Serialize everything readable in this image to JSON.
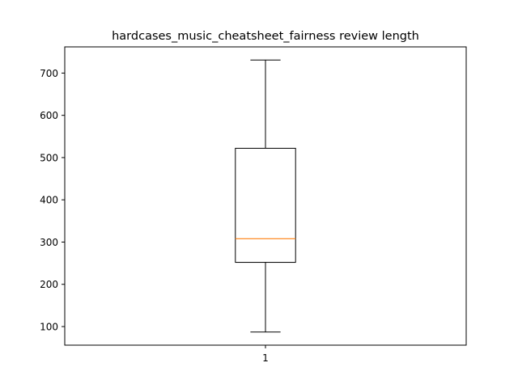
{
  "chart_data": {
    "type": "box",
    "title": "hardcases_music_cheatsheet_fairness review length",
    "xlabel": "",
    "ylabel": "",
    "categories": [
      "1"
    ],
    "boxes": [
      {
        "category": "1",
        "whisker_low": 87,
        "q1": 252,
        "median": 308,
        "q3": 522,
        "whisker_high": 731
      }
    ],
    "ylim": [
      56,
      762
    ],
    "yticks": [
      100,
      200,
      300,
      400,
      500,
      600,
      700
    ],
    "grid": false,
    "colors": {
      "box": "#000000",
      "median": "#ff7f0e",
      "whisker": "#000000"
    }
  }
}
